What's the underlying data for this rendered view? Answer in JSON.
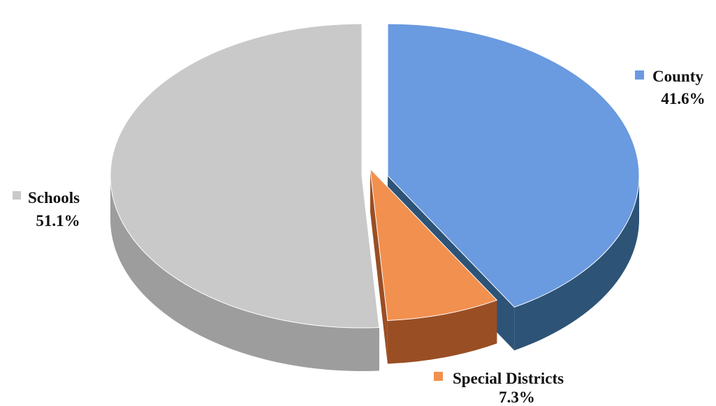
{
  "chart_data": {
    "type": "pie",
    "style": "3d-exploded",
    "legend_placement": "data labels beside slices",
    "slices": [
      {
        "label": "County",
        "value": 41.6,
        "value_label": "41.6%",
        "color": "#6a9ae0",
        "side_color": "#2d5377"
      },
      {
        "label": "Special Districts",
        "value": 7.3,
        "value_label": "7.3%",
        "color": "#f2904f",
        "side_color": "#9a4e24"
      },
      {
        "label": "Schools",
        "value": 51.1,
        "value_label": "51.1%",
        "color": "#c9c9c9",
        "side_color": "#9d9d9d"
      }
    ]
  }
}
